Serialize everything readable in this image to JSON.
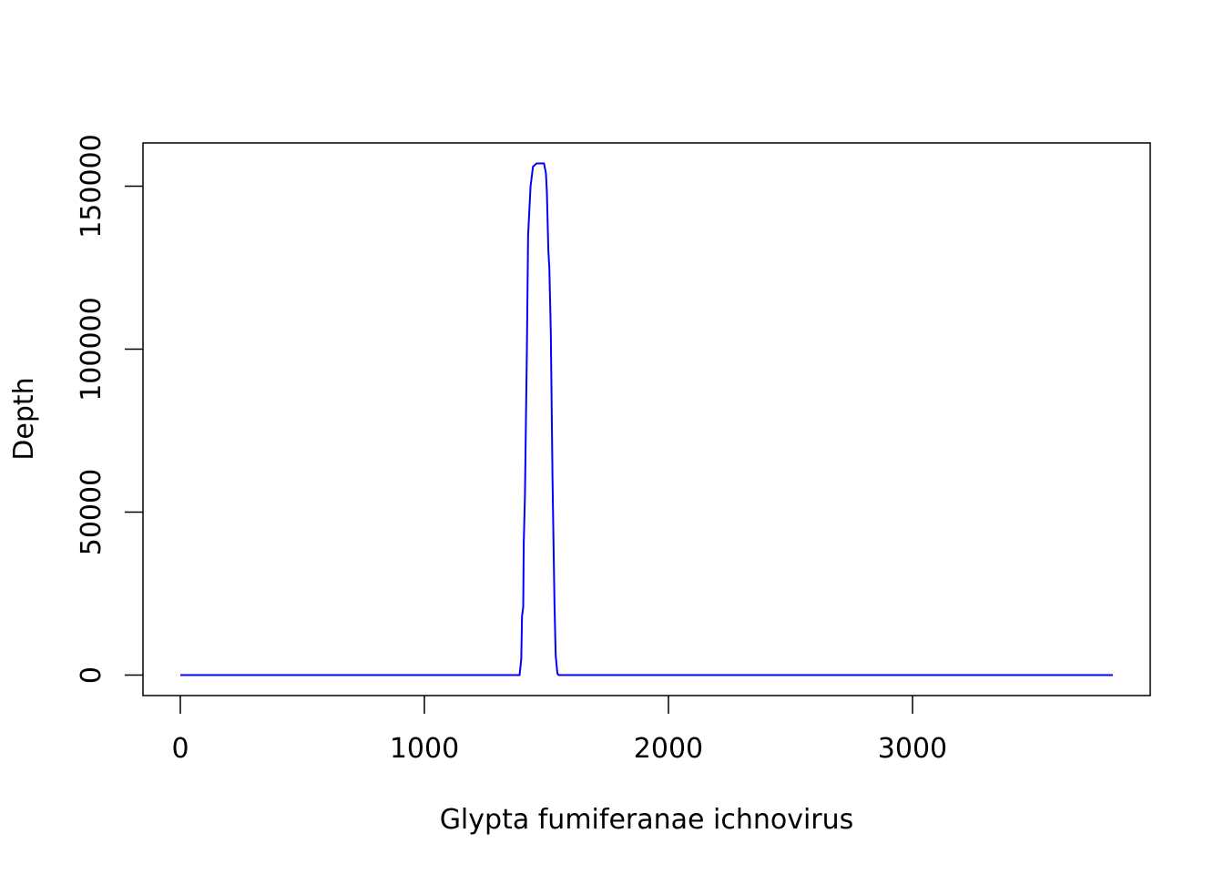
{
  "chart_data": {
    "type": "line",
    "x_label": "Glypta fumiferanae ichnovirus",
    "y_label": "Depth",
    "x": [
      0,
      1390,
      1397,
      1400,
      1405,
      1407,
      1412,
      1420,
      1425,
      1435,
      1445,
      1460,
      1490,
      1498,
      1502,
      1508,
      1512,
      1518,
      1525,
      1533,
      1538,
      1545,
      1550,
      3821
    ],
    "series": [
      {
        "color": "#0000ff",
        "values": [
          0,
          0,
          5000,
          18000,
          21000,
          40000,
          55000,
          100000,
          135000,
          150000,
          156000,
          157000,
          157000,
          154000,
          148000,
          130000,
          125000,
          105000,
          60000,
          22000,
          6000,
          500,
          0,
          0
        ]
      }
    ],
    "xlim": [
      -153,
      3974
    ],
    "ylim": [
      -6280,
      163280
    ],
    "xticks": [
      0,
      1000,
      2000,
      3000
    ],
    "yticks": [
      0,
      50000,
      100000,
      150000
    ],
    "grid": false
  }
}
